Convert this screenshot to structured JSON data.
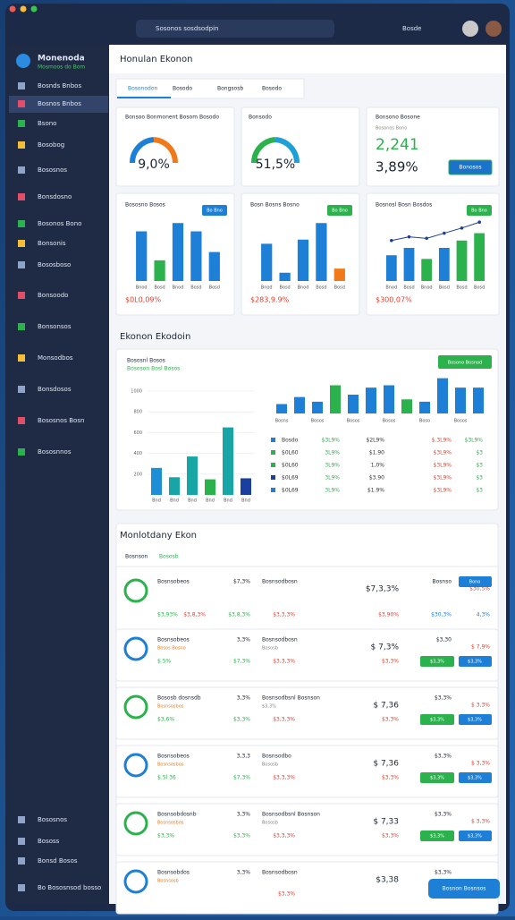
{
  "browser": {
    "address": "Sosonos sosdsodpin",
    "right": "Bosde"
  },
  "app": {
    "name": "Monenoda",
    "subtitle": "Mosmoos do Bom"
  },
  "sidebar": {
    "items": [
      "Bosnds Bnbos",
      "Bosnos Bnbos",
      "Bsono",
      "Bosobog",
      "Bososnos",
      "Bonsdosno",
      "Bosonos Bono",
      "Bonsonis",
      "Bososboso",
      "Bonsoodo",
      "Bonsonsos",
      "Monsodbos",
      "Bonsdosos",
      "Bososnos Bosn",
      "Bososnnos"
    ],
    "footer": [
      "Bososnos",
      "Bososs",
      "Bonsd Bosos",
      "Bo Bososnsod bosso"
    ]
  },
  "header": {
    "title": "Honulan Ekonon"
  },
  "tabs": [
    "Bosonodon",
    "Bosodo",
    "Bongsosb",
    "Bosodo"
  ],
  "kpis": [
    {
      "title": "Bonsoo Bonmonent Bosom Bosodo",
      "value": "9,0%"
    },
    {
      "title": "Bonsodo",
      "value": "51,5%"
    },
    {
      "title": "Bonsono Bosone",
      "subtitle": "Bosonos Bono",
      "value": "2,241",
      "value2": "3,89%",
      "button": "Bonosos"
    }
  ],
  "mini_charts": [
    {
      "title": "Bososno Bosos",
      "badge": "Bo Bno",
      "total": "$0L0,09%"
    },
    {
      "title": "Bosn Bosns Bosno",
      "badge": "Bo Bno",
      "total": "$283,9.9%"
    },
    {
      "title": "Bosnosl Bosn Bosdos",
      "badge": "Bo Bno",
      "total": "$300,07%"
    }
  ],
  "section1": {
    "title": "Ekonon Ekodoin",
    "card_title": "Bososnl Bosos",
    "card_subtitle": "Bososon Bosl Bosos",
    "button": "Bosono Bosnod",
    "table": {
      "row_colors": [
        "#1e7fd6",
        "#2bb24c",
        "#2bb24c",
        "#1a3f9e",
        "#1e7fd6"
      ],
      "rows": [
        [
          "Bosdo",
          "$3L9%",
          "$2L9%",
          "$.3L9%",
          "$3L9%"
        ],
        [
          "$0L60",
          "3L9%",
          "$1.90",
          "$3L9%",
          "$3"
        ],
        [
          "$0L60",
          "3L9%",
          "1,0%",
          "$3L9%",
          "$3"
        ],
        [
          "$0L69",
          "3L9%",
          "$3.90",
          "$3L9%",
          "$3"
        ],
        [
          "$0L69",
          "3L9%",
          "$1.9%",
          "$3L9%",
          "$3"
        ]
      ]
    }
  },
  "section2": {
    "title": "Monlotdany Ekon",
    "filters": [
      "Bosnson",
      "Bososb"
    ],
    "rows": [
      {
        "name": "Bosnsobeos",
        "sub": "",
        "pct": "$7,3%",
        "name2": "Bosnsodbosn",
        "sub2": "",
        "price": "$7,3,3%",
        "r1": "Bosnso",
        "r2": "$30,5%",
        "a": "$3,93%",
        "b": "$3,8,3%",
        "c": "$3,3,3%",
        "d": "$3,90%",
        "e": "$30,3%",
        "f": "$3,8,3%",
        "g": "4,3%",
        "btn1": "",
        "btn2": "Bono"
      },
      {
        "name": "Bosnsobeos",
        "sub": "Bosos Bosno",
        "pct": "3,3%",
        "name2": "Bosnsodbosn",
        "sub2": "Bososb",
        "price": "$ 7,3%",
        "r1": "$3,30",
        "r2": "$ 7,9%",
        "a": "$.5%",
        "b": "$7,3%",
        "c": "$3,3,3%",
        "d": "$3,3%",
        "e": "",
        "f": "",
        "g": "",
        "btn1": "$3,3%",
        "btn2": "$3,3%"
      },
      {
        "name": "Bososb dosnsdb",
        "sub": "Bosnsosbos",
        "pct": "3,3%",
        "name2": "Bosnsodbsnl Bosnson",
        "sub2": "$3,3%",
        "price": "$ 7,36",
        "r1": "$3,3%",
        "r2": "$ 3,3%",
        "a": "$3,6%",
        "b": "$3,3%",
        "c": "$3,3,3%",
        "d": "$3,3%",
        "e": "",
        "f": "",
        "g": "",
        "btn1": "$3,3%",
        "btn2": "$3,3%"
      },
      {
        "name": "Bosnsobeos",
        "sub": "Bosnsosbos",
        "pct": "3,3,3",
        "name2": "Bosnsodbo",
        "sub2": "Bososb",
        "price": "$ 7,36",
        "r1": "$3,3%",
        "r2": "$ 3,3%",
        "a": "$.5l 36",
        "b": "$7,3%",
        "c": "$3,3,3%",
        "d": "$3,3%",
        "e": "",
        "f": "",
        "g": "",
        "btn1": "$3,3%",
        "btn2": "$3,3%"
      },
      {
        "name": "Bosnsobdosnb",
        "sub": "Bosnsosbos",
        "pct": "3,3%",
        "name2": "Bosnsodbsnl Bosnson",
        "sub2": "Bososb",
        "price": "$ 7,33",
        "r1": "$3,3%",
        "r2": "$ 3,3%",
        "a": "$3,3%",
        "b": "$3,3%",
        "c": "$3,3,3%",
        "d": "$3,3%",
        "e": "",
        "f": "",
        "g": "",
        "btn1": "$3,3%",
        "btn2": "$3,3%"
      },
      {
        "name": "Bosnsobdos",
        "sub": "Bosnsosb",
        "pct": "3,3%",
        "name2": "Bosnsodbosn",
        "sub2": "",
        "price": "$3,38",
        "r1": "$3,3%",
        "r2": "",
        "a": "",
        "b": "",
        "c": "$3,3%",
        "d": "",
        "e": "",
        "f": "",
        "g": "",
        "btn1": "",
        "btn2": ""
      }
    ],
    "button": "Bosnon Bosnsos"
  },
  "chart_data": [
    {
      "type": "bar",
      "categories": [
        "Bnod",
        "Bosd",
        "Bnod",
        "Bosd",
        "Bosd"
      ],
      "values": [
        60,
        25,
        70,
        60,
        35
      ],
      "colors": [
        "#1e7fd6",
        "#2bb24c",
        "#1e7fd6",
        "#1e7fd6",
        "#1e7fd6"
      ],
      "ylim": [
        0,
        80
      ]
    },
    {
      "type": "bar",
      "categories": [
        "Bnod",
        "Bosd",
        "Bnod",
        "Bosd",
        "Bosd"
      ],
      "values": [
        45,
        10,
        50,
        70,
        15
      ],
      "colors": [
        "#1e7fd6",
        "#1e7fd6",
        "#1e7fd6",
        "#1e7fd6",
        "#f07a1a"
      ],
      "ylim": [
        0,
        80
      ]
    },
    {
      "type": "combo",
      "categories": [
        "Bnod",
        "Bosd",
        "Bnod",
        "Bosd",
        "Bosd",
        "Bosd"
      ],
      "values": [
        35,
        45,
        30,
        45,
        55,
        65
      ],
      "colors": [
        "#1e7fd6",
        "#1e7fd6",
        "#2bb24c",
        "#1e7fd6",
        "#2bb24c",
        "#2bb24c"
      ],
      "line": {
        "values": [
          55,
          60,
          58,
          65,
          72,
          80
        ],
        "color": "#1a3f9e"
      },
      "ylim": [
        0,
        90
      ]
    },
    {
      "type": "bar",
      "categories": [
        "Bnd",
        "Bnd",
        "Bnd",
        "Bnd",
        "Bnd",
        "Bnd"
      ],
      "values": [
        260,
        170,
        370,
        150,
        650,
        160
      ],
      "colors": [
        "#1e8fd6",
        "#17a5a5",
        "#17a5a5",
        "#2bb24c",
        "#17a5a5",
        "#1a3f9e"
      ],
      "ylim": [
        0,
        1000
      ],
      "yticks": [
        200,
        400,
        600,
        800,
        1000
      ],
      "grid": true
    },
    {
      "type": "bar",
      "categories": [
        "Bosns",
        null,
        "Bosos",
        null,
        "Bosos",
        null,
        "Bosos",
        null,
        "Boso",
        null,
        "Bosos",
        null
      ],
      "values": [
        20,
        35,
        25,
        60,
        40,
        55,
        60,
        30,
        25,
        75,
        55,
        55
      ],
      "colors": [
        "#1e7fd6",
        "#1e7fd6",
        "#1e7fd6",
        "#2bb24c",
        "#1e7fd6",
        "#1e7fd6",
        "#1e7fd6",
        "#2bb24c",
        "#1e7fd6",
        "#1e7fd6",
        "#1e7fd6",
        "#1e7fd6"
      ],
      "ylim": [
        0,
        80
      ]
    }
  ]
}
